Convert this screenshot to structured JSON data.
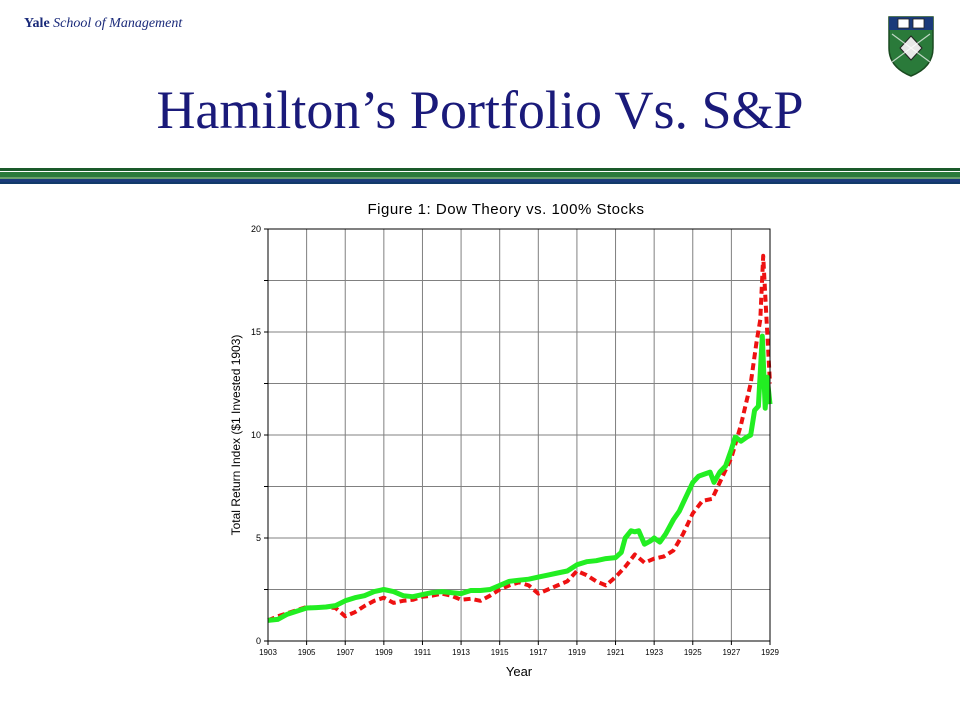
{
  "header": {
    "brand_bold": "Yale",
    "brand_rest": " School of Management",
    "title": "Hamilton’s Portfolio Vs. S&P"
  },
  "colors": {
    "title": "#1a1a7a",
    "dow_theory": "#22ee22",
    "stocks": "#ee1111",
    "grid": "#808080"
  },
  "chart_data": {
    "type": "line",
    "title": "Figure 1: Dow Theory vs. 100% Stocks",
    "xlabel": "Year",
    "ylabel": "Total Return Index ($1 Invested 1903)",
    "xlim": [
      1903,
      1929
    ],
    "ylim": [
      0,
      20
    ],
    "x_ticks": [
      1903,
      1905,
      1907,
      1909,
      1911,
      1913,
      1915,
      1917,
      1919,
      1921,
      1923,
      1925,
      1927,
      1929
    ],
    "y_ticks": [
      0,
      5,
      10,
      15,
      20
    ],
    "grid": true,
    "series": [
      {
        "style": "solid",
        "color": "#22ee22",
        "points": [
          [
            1903.0,
            1.0
          ],
          [
            1903.5,
            1.05
          ],
          [
            1904.0,
            1.3
          ],
          [
            1904.5,
            1.45
          ],
          [
            1905.0,
            1.6
          ],
          [
            1905.5,
            1.62
          ],
          [
            1906.0,
            1.65
          ],
          [
            1906.5,
            1.72
          ],
          [
            1907.0,
            1.95
          ],
          [
            1907.5,
            2.1
          ],
          [
            1908.0,
            2.2
          ],
          [
            1908.5,
            2.4
          ],
          [
            1909.0,
            2.5
          ],
          [
            1909.5,
            2.4
          ],
          [
            1910.0,
            2.2
          ],
          [
            1910.5,
            2.15
          ],
          [
            1911.0,
            2.25
          ],
          [
            1911.5,
            2.35
          ],
          [
            1912.0,
            2.4
          ],
          [
            1912.5,
            2.35
          ],
          [
            1913.0,
            2.3
          ],
          [
            1913.5,
            2.45
          ],
          [
            1914.0,
            2.45
          ],
          [
            1914.5,
            2.5
          ],
          [
            1915.0,
            2.7
          ],
          [
            1915.5,
            2.9
          ],
          [
            1916.0,
            2.95
          ],
          [
            1916.5,
            3.0
          ],
          [
            1917.0,
            3.1
          ],
          [
            1917.5,
            3.2
          ],
          [
            1918.0,
            3.3
          ],
          [
            1918.5,
            3.4
          ],
          [
            1919.0,
            3.7
          ],
          [
            1919.5,
            3.85
          ],
          [
            1920.0,
            3.9
          ],
          [
            1920.5,
            4.0
          ],
          [
            1921.0,
            4.05
          ],
          [
            1921.3,
            4.3
          ],
          [
            1921.5,
            5.0
          ],
          [
            1921.8,
            5.35
          ],
          [
            1922.0,
            5.3
          ],
          [
            1922.2,
            5.35
          ],
          [
            1922.5,
            4.7
          ],
          [
            1922.8,
            4.85
          ],
          [
            1923.0,
            5.0
          ],
          [
            1923.3,
            4.8
          ],
          [
            1923.6,
            5.2
          ],
          [
            1924.0,
            5.9
          ],
          [
            1924.3,
            6.3
          ],
          [
            1924.6,
            6.9
          ],
          [
            1925.0,
            7.7
          ],
          [
            1925.3,
            8.0
          ],
          [
            1925.6,
            8.1
          ],
          [
            1925.9,
            8.2
          ],
          [
            1926.1,
            7.7
          ],
          [
            1926.4,
            8.2
          ],
          [
            1926.7,
            8.5
          ],
          [
            1927.0,
            9.3
          ],
          [
            1927.2,
            9.9
          ],
          [
            1927.5,
            9.7
          ],
          [
            1927.8,
            9.9
          ],
          [
            1928.0,
            10.0
          ],
          [
            1928.2,
            11.2
          ],
          [
            1928.4,
            11.4
          ],
          [
            1928.6,
            14.8
          ],
          [
            1928.75,
            11.3
          ],
          [
            1928.85,
            12.8
          ],
          [
            1929.0,
            11.5
          ]
        ]
      },
      {
        "style": "dashed",
        "color": "#ee1111",
        "points": [
          [
            1903.0,
            1.0
          ],
          [
            1903.5,
            1.2
          ],
          [
            1904.0,
            1.35
          ],
          [
            1904.5,
            1.5
          ],
          [
            1905.0,
            1.65
          ],
          [
            1905.5,
            1.6
          ],
          [
            1906.0,
            1.65
          ],
          [
            1906.5,
            1.6
          ],
          [
            1907.0,
            1.2
          ],
          [
            1907.5,
            1.4
          ],
          [
            1908.0,
            1.7
          ],
          [
            1908.5,
            1.95
          ],
          [
            1909.0,
            2.1
          ],
          [
            1909.5,
            1.85
          ],
          [
            1910.0,
            1.95
          ],
          [
            1910.5,
            2.0
          ],
          [
            1911.0,
            2.15
          ],
          [
            1911.5,
            2.2
          ],
          [
            1912.0,
            2.3
          ],
          [
            1912.5,
            2.2
          ],
          [
            1913.0,
            2.0
          ],
          [
            1913.5,
            2.05
          ],
          [
            1914.0,
            1.95
          ],
          [
            1914.5,
            2.2
          ],
          [
            1915.0,
            2.5
          ],
          [
            1915.5,
            2.7
          ],
          [
            1916.0,
            2.85
          ],
          [
            1916.5,
            2.7
          ],
          [
            1917.0,
            2.3
          ],
          [
            1917.5,
            2.5
          ],
          [
            1918.0,
            2.7
          ],
          [
            1918.5,
            2.9
          ],
          [
            1919.0,
            3.4
          ],
          [
            1919.5,
            3.2
          ],
          [
            1920.0,
            2.9
          ],
          [
            1920.5,
            2.7
          ],
          [
            1921.0,
            3.1
          ],
          [
            1921.5,
            3.6
          ],
          [
            1922.0,
            4.2
          ],
          [
            1922.5,
            3.8
          ],
          [
            1923.0,
            4.0
          ],
          [
            1923.5,
            4.1
          ],
          [
            1924.0,
            4.4
          ],
          [
            1924.5,
            5.2
          ],
          [
            1925.0,
            6.2
          ],
          [
            1925.5,
            6.8
          ],
          [
            1926.0,
            6.9
          ],
          [
            1926.5,
            7.9
          ],
          [
            1927.0,
            8.9
          ],
          [
            1927.5,
            10.5
          ],
          [
            1928.0,
            12.5
          ],
          [
            1928.3,
            14.5
          ],
          [
            1928.5,
            15.6
          ],
          [
            1928.65,
            18.7
          ],
          [
            1928.8,
            16.0
          ],
          [
            1929.0,
            12.5
          ]
        ]
      }
    ]
  }
}
